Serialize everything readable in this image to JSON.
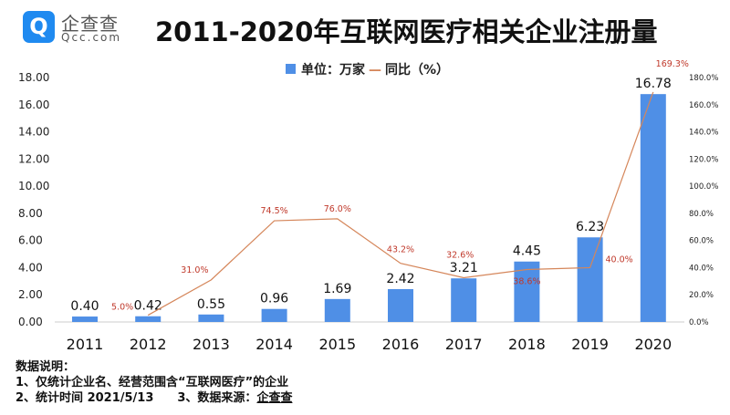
{
  "logo": {
    "name_cn": "企查查",
    "name_en": "Qcc.com"
  },
  "title": "2011-2020年互联网医疗相关企业注册量",
  "legend": {
    "bar": "单位：万家",
    "line": "同比（%）"
  },
  "colors": {
    "bar": "#4f8fe6",
    "line": "#d5865a",
    "line_label": "#c0392b"
  },
  "chart_data": {
    "type": "bar+line",
    "title": "2011-2020年互联网医疗相关企业注册量",
    "categories": [
      "2011",
      "2012",
      "2013",
      "2014",
      "2015",
      "2016",
      "2017",
      "2018",
      "2019",
      "2020"
    ],
    "series": [
      {
        "name": "单位：万家",
        "type": "bar",
        "axis": "left",
        "values": [
          0.4,
          0.42,
          0.55,
          0.96,
          1.69,
          2.42,
          3.21,
          4.45,
          6.23,
          16.78
        ]
      },
      {
        "name": "同比（%）",
        "type": "line",
        "axis": "right",
        "values": [
          null,
          5.0,
          31.0,
          74.5,
          76.0,
          43.2,
          32.6,
          38.6,
          40.0,
          169.3
        ]
      }
    ],
    "ylim_left": [
      0,
      18
    ],
    "yticks_left": [
      "0.00",
      "2.00",
      "4.00",
      "6.00",
      "8.00",
      "10.00",
      "12.00",
      "14.00",
      "16.00",
      "18.00"
    ],
    "ylim_right": [
      0,
      180
    ],
    "yticks_right": [
      "0.0%",
      "20.0%",
      "40.0%",
      "60.0%",
      "80.0%",
      "100.0%",
      "120.0%",
      "140.0%",
      "160.0%",
      "180.0%"
    ],
    "grid": false,
    "legend_position": "top"
  },
  "notes": {
    "heading": "数据说明：",
    "line1": "1、仅统计企业名、经营范围含“互联网医疗”的企业",
    "line2": "2、统计时间 2021/5/13",
    "line3_prefix": "3、数据来源：",
    "source": "企查查"
  }
}
